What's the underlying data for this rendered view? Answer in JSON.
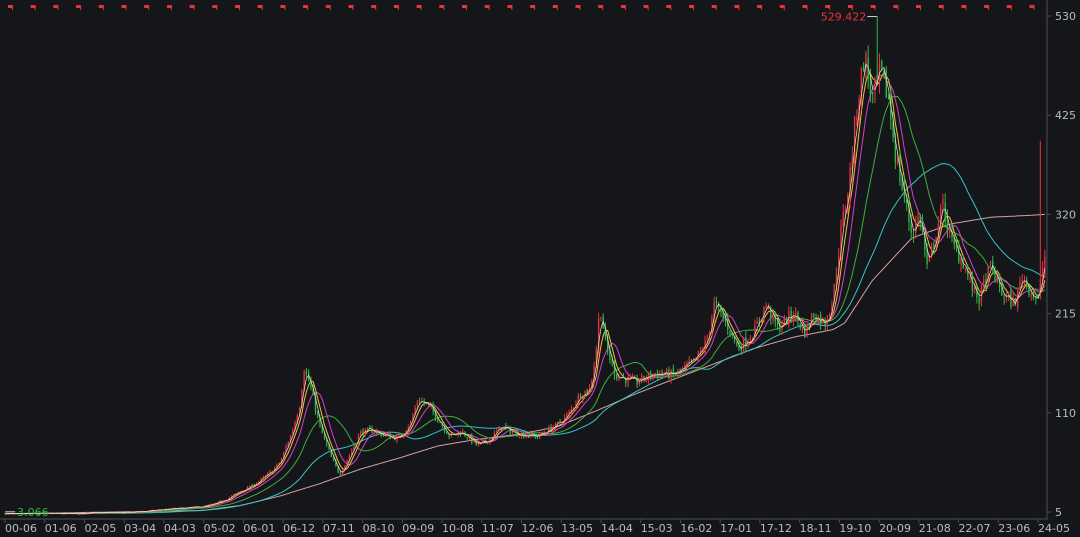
{
  "colors": {
    "background": "#15161a",
    "axis": "#4a4d55",
    "tick_text": "#b8bcc4",
    "up": "#e8333a",
    "down": "#2fb844",
    "ma_fast": "#e6e6e6",
    "ma_5": "#f2c431",
    "ma_10": "#d53fd4",
    "ma_20": "#3fae3f",
    "ma_60": "#35c6c6",
    "ma_250": "#d9a0a0",
    "flag": "#e8333a"
  },
  "icons": {
    "top_markers": "red-flag-icon"
  },
  "chart_data": {
    "type": "candlestick",
    "title": "",
    "xlabel": "",
    "ylabel": "",
    "ylim": [
      5,
      530
    ],
    "y_ticks": [
      530,
      425,
      320,
      215,
      110,
      5
    ],
    "y_tick_labels": [
      "530",
      "425",
      "320",
      "215",
      "110",
      "5"
    ],
    "x_ticks": [
      "00-06",
      "01-06",
      "02-05",
      "03-04",
      "04-03",
      "05-02",
      "06-01",
      "06-12",
      "07-11",
      "08-10",
      "09-09",
      "10-08",
      "11-07",
      "12-06",
      "13-05",
      "14-04",
      "15-03",
      "16-02",
      "17-01",
      "17-12",
      "18-11",
      "19-10",
      "20-09",
      "21-08",
      "22-07",
      "23-06",
      "24-05"
    ],
    "grid": false,
    "legend": "none",
    "annotations": {
      "max_value": "529.422",
      "min_value": "3.066"
    },
    "price_keyframes": [
      [
        0,
        3.1
      ],
      [
        0.5,
        3.0
      ],
      [
        1.0,
        3.5
      ],
      [
        1.5,
        3.2
      ],
      [
        2.0,
        3.3
      ],
      [
        2.5,
        4.5
      ],
      [
        3.0,
        4.0
      ],
      [
        3.5,
        5.5
      ],
      [
        4.0,
        7.5
      ],
      [
        4.5,
        9.0
      ],
      [
        5.0,
        10.5
      ],
      [
        5.3,
        13.0
      ],
      [
        5.6,
        18.0
      ],
      [
        6.0,
        27.0
      ],
      [
        6.3,
        33.0
      ],
      [
        6.7,
        45.0
      ],
      [
        7.0,
        58.0
      ],
      [
        7.3,
        90.0
      ],
      [
        7.5,
        120.0
      ],
      [
        7.6,
        158.0
      ],
      [
        7.75,
        140.0
      ],
      [
        8.0,
        95.0
      ],
      [
        8.3,
        62.0
      ],
      [
        8.5,
        45.0
      ],
      [
        8.7,
        60.0
      ],
      [
        9.0,
        88.0
      ],
      [
        9.3,
        92.0
      ],
      [
        9.7,
        85.0
      ],
      [
        10.0,
        83.0
      ],
      [
        10.3,
        100.0
      ],
      [
        10.5,
        125.0
      ],
      [
        10.8,
        115.0
      ],
      [
        11.0,
        103.0
      ],
      [
        11.3,
        85.0
      ],
      [
        11.6,
        90.0
      ],
      [
        12.0,
        75.0
      ],
      [
        12.3,
        82.0
      ],
      [
        12.6,
        95.0
      ],
      [
        13.0,
        88.0
      ],
      [
        13.5,
        85.0
      ],
      [
        14.0,
        97.0
      ],
      [
        14.3,
        108.0
      ],
      [
        14.6,
        130.0
      ],
      [
        14.85,
        135.0
      ],
      [
        15.0,
        175.0
      ],
      [
        15.1,
        225.0
      ],
      [
        15.25,
        180.0
      ],
      [
        15.5,
        150.0
      ],
      [
        16.0,
        142.0
      ],
      [
        16.5,
        152.0
      ],
      [
        17.0,
        150.0
      ],
      [
        17.5,
        165.0
      ],
      [
        17.8,
        185.0
      ],
      [
        18.0,
        225.0
      ],
      [
        18.3,
        205.0
      ],
      [
        18.6,
        178.0
      ],
      [
        19.0,
        195.0
      ],
      [
        19.3,
        225.0
      ],
      [
        19.6,
        200.0
      ],
      [
        20.0,
        215.0
      ],
      [
        20.3,
        195.0
      ],
      [
        20.5,
        215.0
      ],
      [
        20.8,
        205.0
      ],
      [
        21.0,
        230.0
      ],
      [
        21.2,
        300.0
      ],
      [
        21.4,
        350.0
      ],
      [
        21.6,
        430.0
      ],
      [
        21.8,
        490.0
      ],
      [
        22.0,
        440.0
      ],
      [
        22.2,
        470.0
      ],
      [
        22.4,
        445.0
      ],
      [
        22.6,
        380.0
      ],
      [
        22.8,
        340.0
      ],
      [
        23.0,
        300.0
      ],
      [
        23.2,
        320.0
      ],
      [
        23.4,
        260.0
      ],
      [
        23.6,
        300.0
      ],
      [
        23.8,
        330.0
      ],
      [
        24.0,
        290.0
      ],
      [
        24.3,
        270.0
      ],
      [
        24.5,
        245.0
      ],
      [
        24.7,
        230.0
      ],
      [
        25.0,
        265.0
      ],
      [
        25.3,
        235.0
      ],
      [
        25.6,
        225.0
      ],
      [
        25.8,
        255.0
      ],
      [
        26.0,
        240.0
      ],
      [
        26.2,
        228.0
      ],
      [
        26.35,
        275.0
      ]
    ],
    "max_point": {
      "t": 22.15,
      "value": 529.422
    },
    "min_point": {
      "t": 0.1,
      "value": 3.066
    },
    "last_spike": {
      "t": 26.3,
      "value": 398.0
    },
    "ma_250_keyframes": [
      [
        0,
        3.1
      ],
      [
        5.0,
        6.5
      ],
      [
        6.0,
        12.0
      ],
      [
        7.0,
        22.0
      ],
      [
        8.0,
        35.0
      ],
      [
        9.0,
        50.0
      ],
      [
        10.0,
        62.0
      ],
      [
        11.0,
        75.0
      ],
      [
        12.0,
        82.0
      ],
      [
        13.0,
        87.0
      ],
      [
        14.0,
        95.0
      ],
      [
        15.0,
        112.0
      ],
      [
        16.0,
        130.0
      ],
      [
        17.0,
        146.0
      ],
      [
        18.0,
        162.0
      ],
      [
        19.0,
        178.0
      ],
      [
        20.0,
        190.0
      ],
      [
        21.0,
        198.0
      ],
      [
        21.3,
        205.0
      ],
      [
        22.0,
        250.0
      ],
      [
        23.0,
        295.0
      ],
      [
        24.0,
        310.0
      ],
      [
        25.0,
        317.0
      ],
      [
        26.0,
        319.0
      ],
      [
        26.35,
        320.0
      ]
    ]
  }
}
